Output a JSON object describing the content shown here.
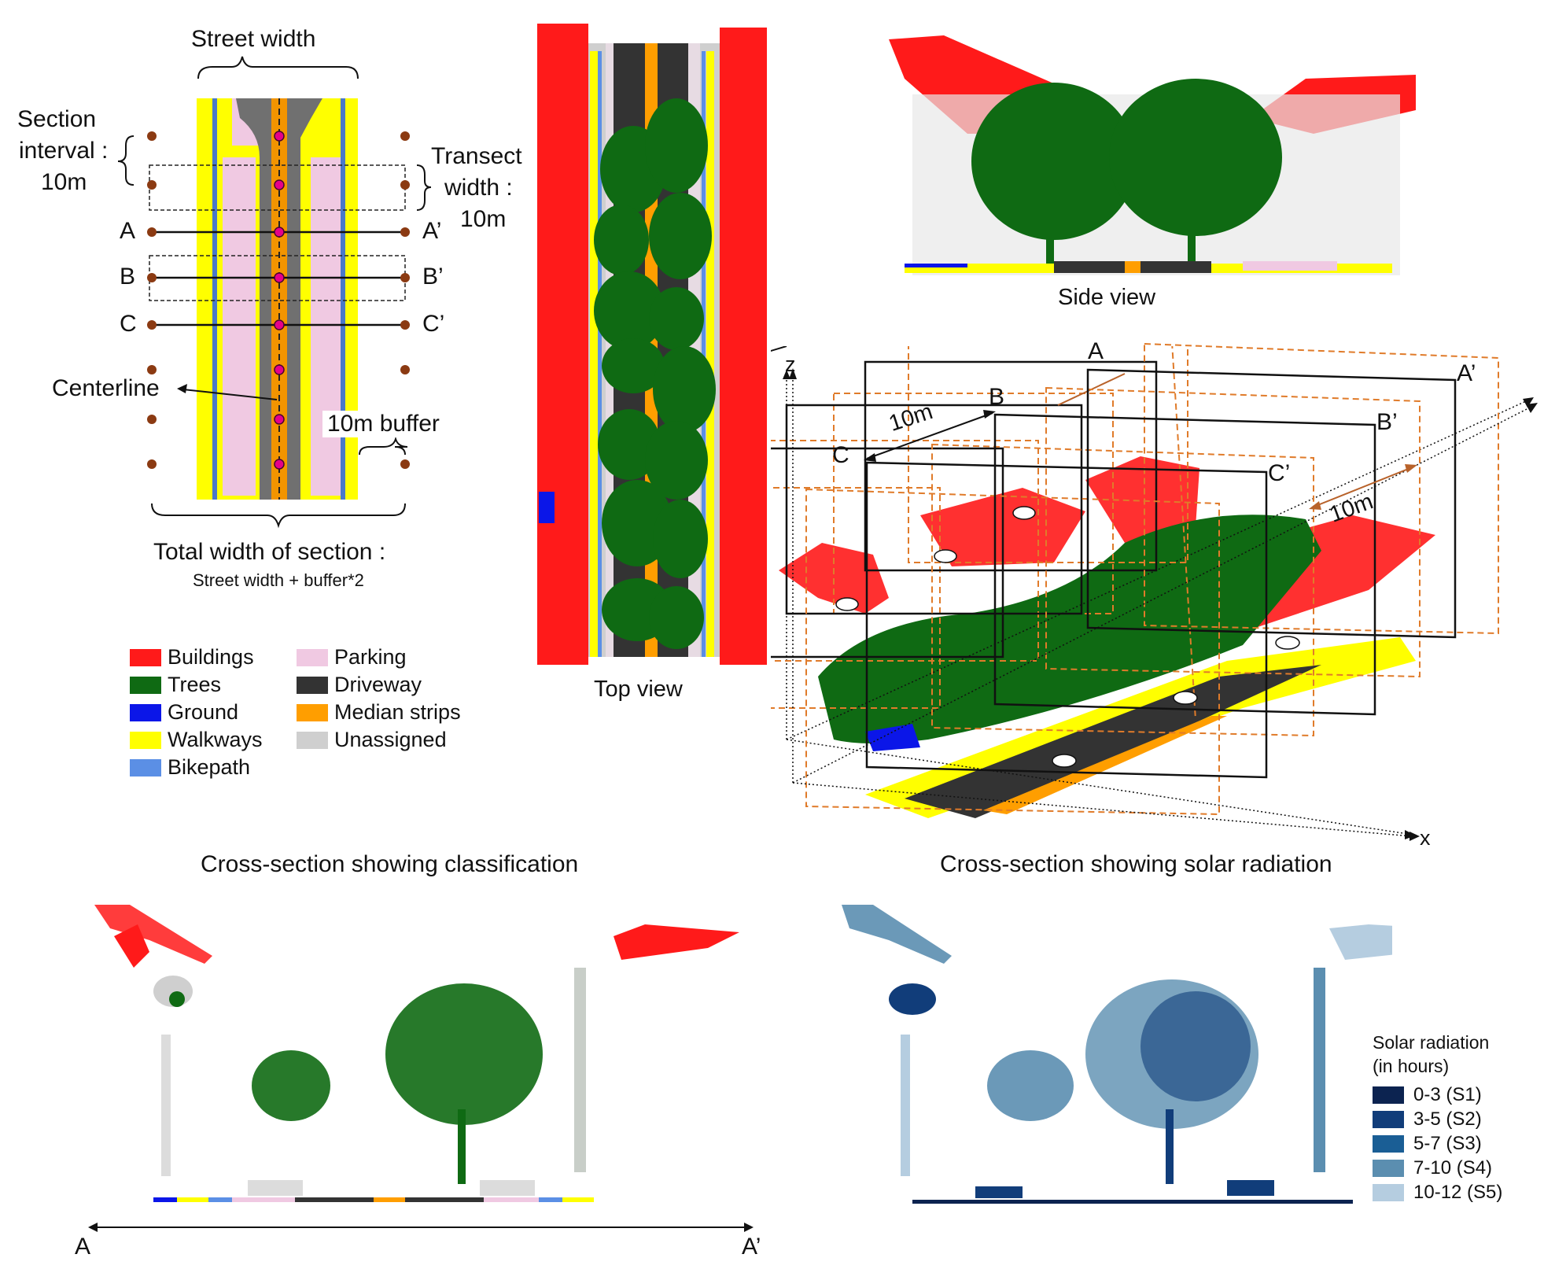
{
  "plan": {
    "street_width": "Street width",
    "section_interval": [
      "Section",
      "interval :",
      "10m"
    ],
    "transect_width": [
      "Transect",
      "width :",
      "10m"
    ],
    "section_labels": [
      "A",
      "B",
      "C"
    ],
    "section_labels_prime": [
      "A’",
      "B’",
      "C’"
    ],
    "centerline": "Centerline",
    "buffer": "10m buffer",
    "total_width": "Total width of section :",
    "total_width_formula": "Street width + buffer*2"
  },
  "legend": [
    {
      "label": "Buildings",
      "color": "#ff1a1a"
    },
    {
      "label": "Trees",
      "color": "#0f6a13"
    },
    {
      "label": "Ground",
      "color": "#0b16e8"
    },
    {
      "label": "Walkways",
      "color": "#ffff00"
    },
    {
      "label": "Bikepath",
      "color": "#5b8fe5"
    },
    {
      "label": "Parking",
      "color": "#f0c9e2"
    },
    {
      "label": "Driveway",
      "color": "#333333"
    },
    {
      "label": "Median strips",
      "color": "#ff9e00"
    },
    {
      "label": "Unassigned",
      "color": "#cfcfcf"
    }
  ],
  "views": {
    "top": "Top view",
    "side": "Side view"
  },
  "perspective": {
    "labels": [
      "A",
      "A’",
      "B",
      "B’",
      "C",
      "C’"
    ],
    "dim_front": "10m",
    "dim_side": "10m",
    "axis_z": "z",
    "axis_x": "x"
  },
  "cross_sections": {
    "classification_title": "Cross-section showing classification",
    "solar_title": "Cross-section showing solar radiation",
    "axis_start": "A",
    "axis_end": "A’"
  },
  "solar_legend": {
    "title": [
      "Solar radiation",
      "(in hours)"
    ],
    "items": [
      {
        "label": "0-3 (S1)",
        "color": "#0c2350"
      },
      {
        "label": "3-5 (S2)",
        "color": "#113d7a"
      },
      {
        "label": "5-7 (S3)",
        "color": "#1a5e95"
      },
      {
        "label": "7-10 (S4)",
        "color": "#5b8eb0"
      },
      {
        "label": "10-12 (S5)",
        "color": "#b5cde0"
      }
    ]
  }
}
